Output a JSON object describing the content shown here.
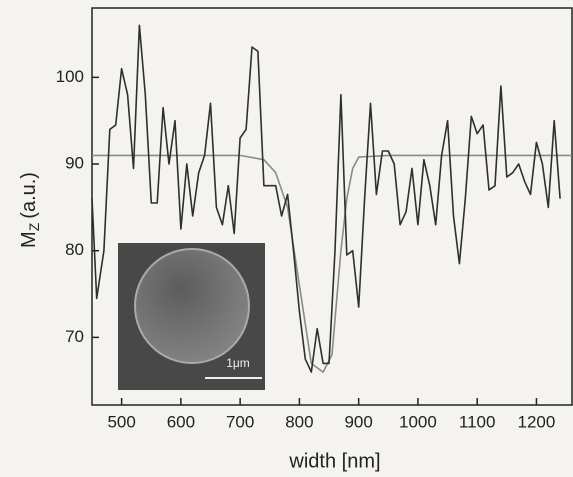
{
  "chart_data": {
    "type": "line",
    "x_label": "width [nm]",
    "y_label": {
      "main": "M",
      "sub": "Z",
      "rest": "(a.u.)"
    },
    "inset_label": "1μm",
    "xlim": [
      450,
      1260
    ],
    "ylim": [
      62.2,
      108
    ],
    "xticks": [
      500,
      600,
      700,
      800,
      900,
      1000,
      1100,
      1200
    ],
    "yticks": [
      70,
      80,
      90,
      100
    ],
    "series": [
      {
        "color": "#2f2f2f",
        "x": [
          450,
          458,
          470,
          480,
          490,
          500,
          510,
          520,
          530,
          540,
          550,
          560,
          570,
          580,
          590,
          600,
          610,
          620,
          630,
          640,
          650,
          660,
          670,
          680,
          690,
          700,
          710,
          720,
          730,
          740,
          750,
          760,
          770,
          780,
          790,
          800,
          810,
          820,
          830,
          840,
          850,
          860,
          870,
          880,
          890,
          900,
          910,
          920,
          930,
          940,
          950,
          960,
          970,
          980,
          990,
          1000,
          1010,
          1020,
          1030,
          1040,
          1050,
          1060,
          1070,
          1080,
          1090,
          1100,
          1110,
          1120,
          1130,
          1140,
          1150,
          1160,
          1170,
          1180,
          1190,
          1200,
          1210,
          1220,
          1230,
          1240
        ],
        "values": [
          86,
          74.5,
          80,
          94,
          94.5,
          101,
          98,
          89.5,
          106,
          98,
          85.5,
          85.5,
          96.5,
          90,
          95,
          82.5,
          90,
          84,
          89,
          91,
          97,
          85,
          83,
          87.5,
          82,
          93,
          94,
          103.5,
          103,
          87.5,
          87.5,
          87.5,
          84,
          86.5,
          80,
          73,
          67.5,
          66,
          71,
          67,
          67,
          80,
          98,
          79.5,
          80,
          73.5,
          86,
          97,
          86.5,
          91.5,
          91.5,
          90,
          83,
          84.5,
          89.5,
          83,
          90.5,
          87.5,
          83,
          91,
          95,
          84,
          78.5,
          86,
          95.5,
          93.5,
          94.5,
          87,
          87.5,
          99,
          88.5,
          89,
          90,
          88,
          86.5,
          92.5,
          90,
          85,
          95,
          86
        ]
      },
      {
        "color": "#8a8a8a",
        "x": [
          450,
          700,
          740,
          760,
          780,
          800,
          820,
          840,
          855,
          870,
          880,
          890,
          900,
          950,
          1260
        ],
        "values": [
          91,
          91,
          90.5,
          89,
          85,
          76,
          67,
          66,
          68,
          80,
          86,
          89.5,
          90.8,
          91,
          91
        ]
      }
    ]
  }
}
